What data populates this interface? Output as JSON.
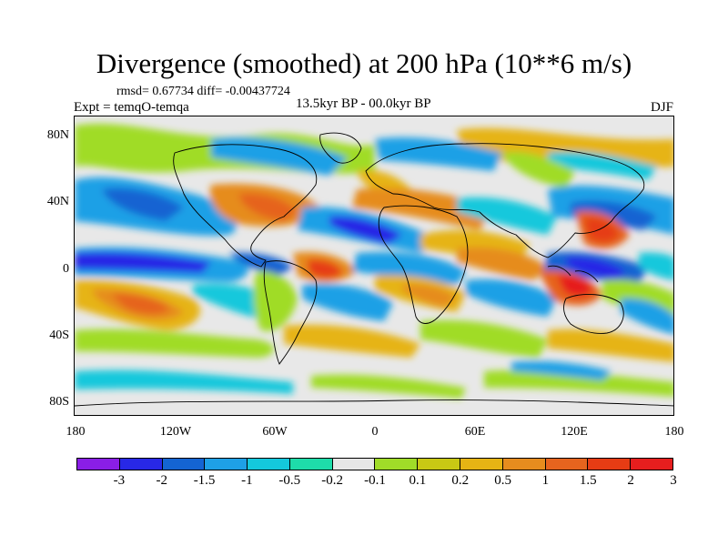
{
  "title": "Divergence (smoothed) at 200 hPa (10**6 m/s)",
  "stats_line": "rmsd= 0.67734 diff= -0.00437724",
  "experiment": "Expt = temqO-temqa",
  "period": "13.5kyr BP - 00.0kyr BP",
  "season": "DJF",
  "latitude_labels": [
    "80N",
    "40N",
    "0",
    "40S",
    "80S"
  ],
  "longitude_labels": [
    "180",
    "120W",
    "60W",
    "0",
    "60E",
    "120E",
    "180"
  ],
  "colorbar": {
    "labels": [
      "-3",
      "-2",
      "-1.5",
      "-1",
      "-0.5",
      "-0.2",
      "-0.1",
      "0.1",
      "0.2",
      "0.5",
      "1",
      "1.5",
      "2",
      "3"
    ],
    "colors": [
      "#8a1ee6",
      "#2828e6",
      "#1464d2",
      "#1ea0e6",
      "#14c8dc",
      "#1edcaa",
      "#e6e6e6",
      "#a0dc28",
      "#c8c814",
      "#e6b414",
      "#e68c1e",
      "#e6641e",
      "#e63c14",
      "#e61e1e"
    ]
  },
  "map_regions": [
    {
      "name": "tropical-pacific-convergence",
      "lon": -160,
      "lat": 2,
      "value": -2
    },
    {
      "name": "maritime-continent-convergence",
      "lon": 118,
      "lat": -2,
      "value": -2
    },
    {
      "name": "northwest-pacific-divergence",
      "lon": 143,
      "lat": 26,
      "value": 2
    },
    {
      "name": "australia-divergence",
      "lon": 125,
      "lat": -8,
      "value": 3
    },
    {
      "name": "south-atlantic-divergence",
      "lon": -35,
      "lat": 3,
      "value": 2
    },
    {
      "name": "south-pacific-divergence",
      "lon": -145,
      "lat": -22,
      "value": 1.5
    }
  ]
}
